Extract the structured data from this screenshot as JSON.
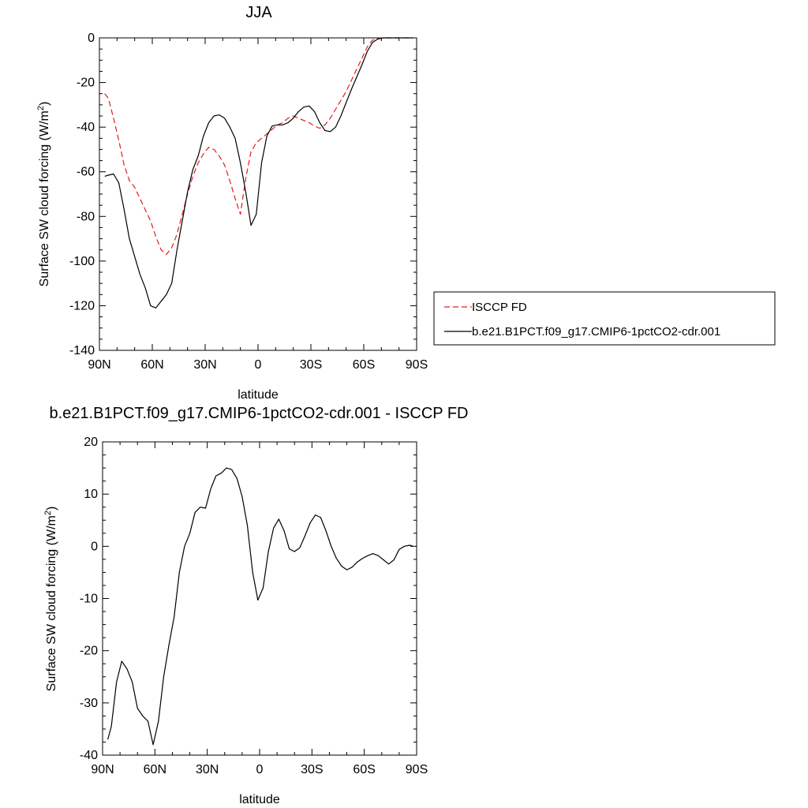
{
  "chart_data": [
    {
      "type": "line",
      "title": "JJA",
      "xlabel": "latitude",
      "ylabel": "Surface SW cloud forcing (W/m",
      "ylabel_sup": "2",
      "ylabel_end": ")",
      "xlim": [
        90,
        -90
      ],
      "ylim": [
        -140,
        0
      ],
      "xticks": [
        {
          "value": 90,
          "label": "90N"
        },
        {
          "value": 60,
          "label": "60N"
        },
        {
          "value": 30,
          "label": "30N"
        },
        {
          "value": 0,
          "label": "0"
        },
        {
          "value": -30,
          "label": "30S"
        },
        {
          "value": -60,
          "label": "60S"
        },
        {
          "value": -90,
          "label": "90S"
        }
      ],
      "yticks": [
        0,
        -20,
        -40,
        -60,
        -80,
        -100,
        -120,
        -140
      ],
      "yticklabels": [
        "0",
        "-20",
        "-40",
        "-60",
        "-80",
        "-100",
        "-120",
        "-140"
      ],
      "legend_position": "right",
      "series": [
        {
          "name": "ISCCP FD",
          "color": "#e41a1c",
          "style": "dashed",
          "x": [
            87,
            85,
            82,
            79,
            76,
            73,
            70,
            67,
            64,
            61,
            58,
            55,
            52,
            49,
            46,
            43,
            40,
            37,
            34,
            31,
            28,
            25,
            22,
            19,
            16,
            13,
            10,
            7,
            4,
            1,
            -2,
            -5,
            -8,
            -11,
            -14,
            -17,
            -20,
            -23,
            -26,
            -29,
            -32,
            -35,
            -38,
            -41,
            -44,
            -47,
            -50,
            -53,
            -56,
            -59,
            -62,
            -65,
            -68,
            -71,
            -74,
            -77,
            -80,
            -83,
            -86,
            -88
          ],
          "y": [
            -25,
            -27,
            -36,
            -46,
            -57,
            -64,
            -67,
            -72,
            -77,
            -82,
            -89,
            -95,
            -97,
            -94,
            -88,
            -79,
            -70,
            -62,
            -56,
            -52,
            -49,
            -50,
            -53,
            -57,
            -64,
            -72,
            -79,
            -63,
            -51,
            -47,
            -45,
            -43,
            -41,
            -39,
            -38,
            -36,
            -35,
            -36,
            -37,
            -38,
            -39.5,
            -40.5,
            -39,
            -36,
            -32,
            -28,
            -24,
            -19,
            -14,
            -9,
            -4,
            -1,
            -0.3,
            0,
            0,
            0,
            0,
            0,
            0,
            0
          ]
        },
        {
          "name": "b.e21.B1PCT.f09_g17.CMIP6-1pctCO2-cdr.001",
          "color": "#000000",
          "style": "solid",
          "x": [
            87,
            85,
            82,
            79,
            76,
            73,
            70,
            67,
            64,
            61,
            58,
            55,
            52,
            49,
            46,
            43,
            40,
            37,
            34,
            31,
            28,
            25,
            22,
            19,
            16,
            13,
            10,
            7,
            4,
            1,
            -2,
            -5,
            -8,
            -11,
            -14,
            -17,
            -20,
            -23,
            -26,
            -29,
            -32,
            -35,
            -38,
            -41,
            -44,
            -47,
            -50,
            -53,
            -56,
            -59,
            -62,
            -65,
            -68,
            -71,
            -74,
            -77,
            -80,
            -83,
            -86,
            -88
          ],
          "y": [
            -62,
            -61.5,
            -61,
            -65,
            -77,
            -90,
            -98,
            -106,
            -112,
            -120,
            -121,
            -118,
            -115,
            -110,
            -95,
            -82,
            -69,
            -59,
            -53,
            -44,
            -38,
            -35,
            -34.5,
            -36,
            -40,
            -45,
            -56,
            -69,
            -84,
            -79,
            -56,
            -44,
            -39.5,
            -39,
            -39,
            -38,
            -36,
            -33,
            -31,
            -30.5,
            -33,
            -38,
            -41.5,
            -42,
            -40,
            -35,
            -29,
            -23,
            -17.5,
            -12,
            -6,
            -2,
            -0.5,
            0,
            0,
            0,
            0,
            0,
            0,
            0
          ]
        }
      ]
    },
    {
      "type": "line",
      "title": "b.e21.B1PCT.f09_g17.CMIP6-1pctCO2-cdr.001 - ISCCP FD",
      "xlabel": "latitude",
      "ylabel": "Surface SW cloud forcing (W/m",
      "ylabel_sup": "2",
      "ylabel_end": ")",
      "xlim": [
        90,
        -90
      ],
      "ylim": [
        -40,
        20
      ],
      "xticks": [
        {
          "value": 90,
          "label": "90N"
        },
        {
          "value": 60,
          "label": "60N"
        },
        {
          "value": 30,
          "label": "30N"
        },
        {
          "value": 0,
          "label": "0"
        },
        {
          "value": -30,
          "label": "30S"
        },
        {
          "value": -60,
          "label": "60S"
        },
        {
          "value": -90,
          "label": "90S"
        }
      ],
      "yticks": [
        20,
        10,
        0,
        -10,
        -20,
        -30,
        -40
      ],
      "yticklabels": [
        "20",
        "10",
        "0",
        "-10",
        "-20",
        "-30",
        "-40"
      ],
      "series": [
        {
          "color": "#000000",
          "style": "solid",
          "x": [
            87,
            85,
            82,
            79,
            76,
            73,
            70,
            67,
            64,
            61,
            58,
            55,
            52,
            49,
            46,
            43,
            40,
            37,
            34,
            31,
            28,
            25,
            22,
            19,
            16,
            13,
            10,
            7,
            4,
            1,
            -2,
            -5,
            -8,
            -11,
            -14,
            -17,
            -20,
            -23,
            -26,
            -29,
            -32,
            -35,
            -38,
            -41,
            -44,
            -47,
            -50,
            -53,
            -56,
            -59,
            -62,
            -65,
            -68,
            -71,
            -74,
            -77,
            -80,
            -83,
            -86,
            -88
          ],
          "y": [
            -37,
            -34.5,
            -26,
            -22,
            -23.5,
            -26,
            -31,
            -32.5,
            -33.5,
            -38,
            -33.5,
            -25,
            -19,
            -13.5,
            -5,
            0,
            2.5,
            6.5,
            7.5,
            7.3,
            11,
            13.5,
            14,
            15,
            14.7,
            13,
            9.5,
            4,
            -5,
            -10.3,
            -8,
            -1,
            3.5,
            5.2,
            3,
            -0.5,
            -1,
            -0.3,
            2,
            4.5,
            6,
            5.5,
            3,
            0,
            -2.3,
            -3.8,
            -4.5,
            -4,
            -3,
            -2.3,
            -1.8,
            -1.4,
            -1.8,
            -2.6,
            -3.4,
            -2.6,
            -0.6,
            0,
            0.2,
            0
          ]
        }
      ]
    }
  ]
}
